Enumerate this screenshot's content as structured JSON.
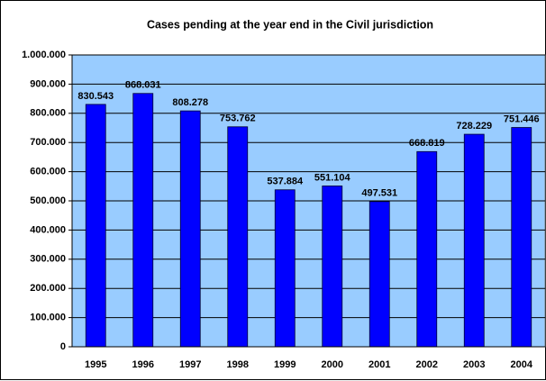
{
  "chart_data": {
    "type": "bar",
    "title": "Cases pending at the year end in the Civil jurisdiction",
    "categories": [
      "1995",
      "1996",
      "1997",
      "1998",
      "1999",
      "2000",
      "2001",
      "2002",
      "2003",
      "2004"
    ],
    "values": [
      830543,
      868031,
      808278,
      753762,
      537884,
      551104,
      497531,
      668819,
      728229,
      751446
    ],
    "value_labels": [
      "830.543",
      "868.031",
      "808.278",
      "753.762",
      "537.884",
      "551.104",
      "497.531",
      "668.819",
      "728.229",
      "751.446"
    ],
    "color": "#0000ff",
    "ylim": [
      0,
      1000000
    ],
    "yticks": [
      0,
      {
        "value": 100000,
        "label": "100.000"
      },
      {
        "value": 200000,
        "label": "200.000"
      },
      {
        "value": 300000,
        "label": "300.000"
      },
      {
        "value": 400000,
        "label": "400.000"
      },
      {
        "value": 500000,
        "label": "500.000"
      },
      {
        "value": 600000,
        "label": "600.000"
      },
      {
        "value": 700000,
        "label": "700.000"
      },
      {
        "value": 800000,
        "label": "800.000"
      },
      {
        "value": 900000,
        "label": "900.000"
      },
      {
        "value": 1000000,
        "label": "1.000.000"
      }
    ],
    "grid": true
  }
}
